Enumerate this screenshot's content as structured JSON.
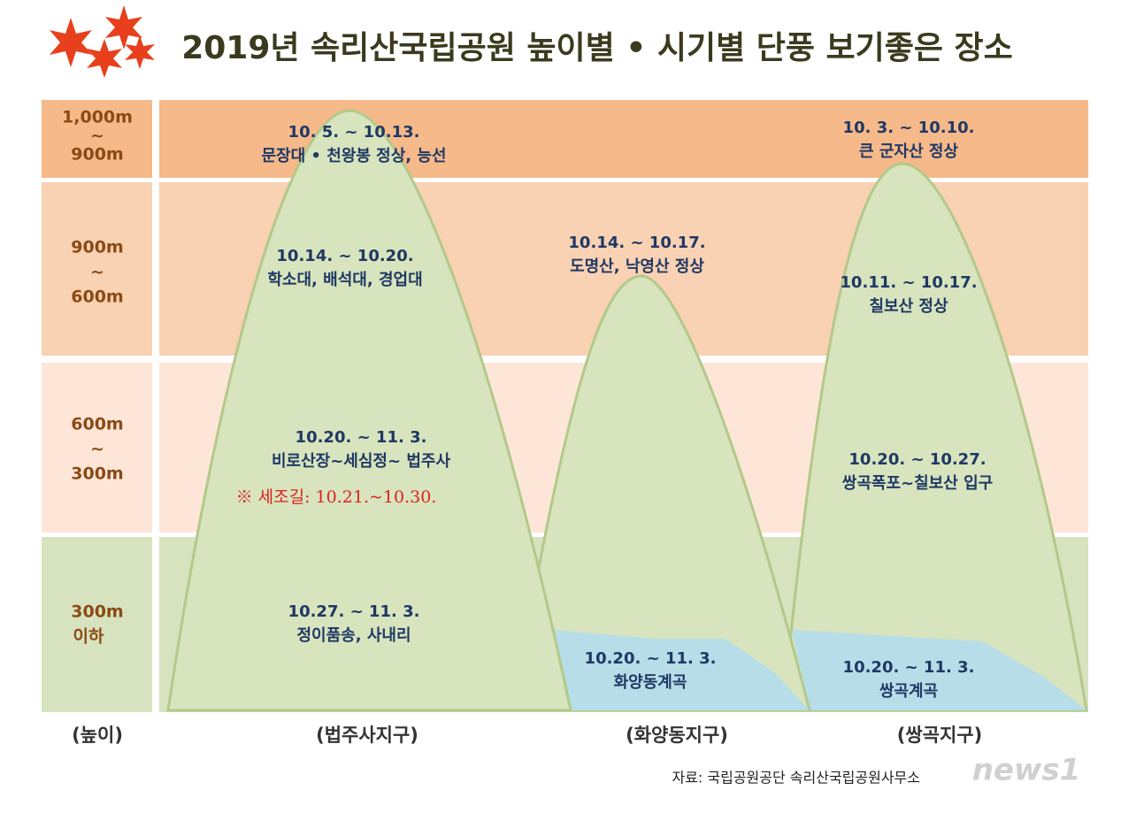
{
  "title": "2019년 속리산국립공원 높이별 • 시기별 단풍 보기좋은 장소",
  "heights": [
    [
      "1,000m",
      "~",
      "900m"
    ],
    [
      "900m",
      "~",
      "600m"
    ],
    [
      "600m",
      "~",
      "300m"
    ],
    [
      "300m",
      "이하"
    ]
  ],
  "height_axis_label": "(높이)",
  "districts": [
    "(법주사지구)",
    "(화양동지구)",
    "(쌍곡지구)"
  ],
  "spots": [
    {
      "date": "10. 5. ~ 10.13.",
      "place": "문장대 • 천왕봉 정상, 능선"
    },
    {
      "date": "10.14. ~ 10.20.",
      "place": "학소대, 배석대, 경업대"
    },
    {
      "date": "10.20. ~ 11. 3.",
      "place": "비로산장~세심정~ 법주사"
    },
    {
      "date": "10.27. ~ 11. 3.",
      "place": "정이품송, 사내리"
    },
    {
      "date": "10.14. ~ 10.17.",
      "place": "도명산, 낙영산 정상"
    },
    {
      "date": "10.20. ~ 11. 3.",
      "place": "화양동계곡"
    },
    {
      "date": "10. 3. ~ 10.10.",
      "place": "큰 군자산 정상"
    },
    {
      "date": "10.11. ~ 10.17.",
      "place": "칠보산 정상"
    },
    {
      "date": "10.20. ~ 10.27.",
      "place": "쌍곡폭포~칠보산 입구"
    },
    {
      "date": "10.20. ~ 11. 3.",
      "place": "쌍곡계곡"
    }
  ],
  "note": "※ 세조길: 10.21.~10.30.",
  "source": "자료: 국립공원공단 속리산국립공원사무소",
  "watermark": "news1"
}
